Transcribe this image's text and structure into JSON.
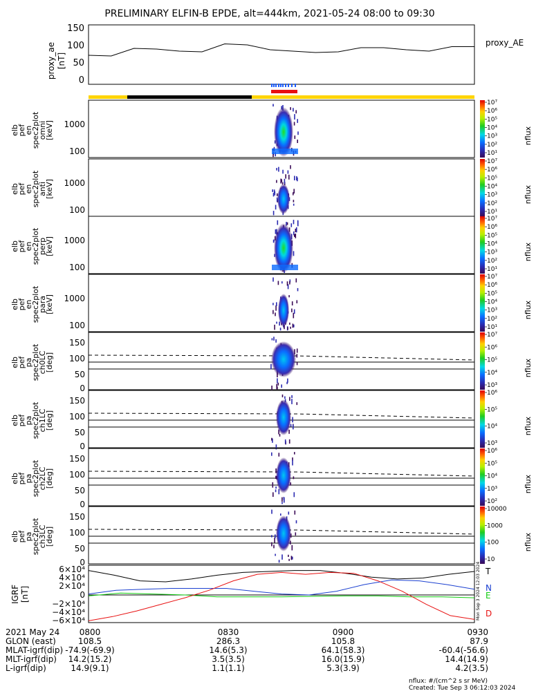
{
  "title": "PRELIMINARY ELFIN-B EPDE, alt=444km, 2021-05-24 08:00 to 09:30",
  "colors": {
    "pa_blue": "#1a5cff",
    "bar_yellow": "#ffd400",
    "bar_black": "#000000",
    "red": "#e81010",
    "green": "#11cc11"
  },
  "panels": {
    "proxy_ae": {
      "ylabel": [
        "proxy_ae",
        "[nT]"
      ],
      "yticks": [
        "150",
        "100",
        "50",
        "0"
      ],
      "legend": "proxy_AE"
    },
    "spec": [
      {
        "ylabel": [
          "elb",
          "pef",
          "en",
          "spec2plot",
          "omni",
          "[keV]"
        ],
        "yticks": [
          "1000",
          "100"
        ],
        "cbar_ticks": [
          "10⁷",
          "10⁶",
          "10⁵",
          "10⁴",
          "10³",
          "10²",
          "10¹"
        ],
        "cbar_label": "nflux"
      },
      {
        "ylabel": [
          "elb",
          "pef",
          "en",
          "spec2plot",
          "anti",
          "[keV]"
        ],
        "yticks": [
          "1000",
          "100"
        ],
        "cbar_ticks": [
          "10⁷",
          "10⁶",
          "10⁵",
          "10⁴",
          "10³",
          "10²",
          "10¹"
        ],
        "cbar_label": "nflux"
      },
      {
        "ylabel": [
          "elb",
          "pef",
          "en",
          "spec2plot",
          "perp",
          "[keV]"
        ],
        "yticks": [
          "1000",
          "100"
        ],
        "cbar_ticks": [
          "10⁷",
          "10⁶",
          "10⁵",
          "10⁴",
          "10³",
          "10²",
          "10¹"
        ],
        "cbar_label": "nflux"
      },
      {
        "ylabel": [
          "elb",
          "pef",
          "en",
          "spec2plot",
          "para",
          "[keV]"
        ],
        "yticks": [
          "1000",
          "100"
        ],
        "cbar_ticks": [
          "10⁷",
          "10⁶",
          "10⁵",
          "10⁴",
          "10³",
          "10²",
          "10¹"
        ],
        "cbar_label": "nflux"
      }
    ],
    "pa": [
      {
        "ylabel": [
          "elb",
          "pef",
          "pa",
          "spec2plot",
          "ch0LC",
          "[deg]"
        ],
        "yticks": [
          "150",
          "100",
          "50",
          "0"
        ],
        "cbar_ticks": [
          "10⁷",
          "10⁶",
          "10⁵",
          "10⁴",
          "10³"
        ],
        "cbar_label": "nflux"
      },
      {
        "ylabel": [
          "elb",
          "pef",
          "pa",
          "spec2plot",
          "ch1LC",
          "[deg]"
        ],
        "yticks": [
          "150",
          "100",
          "50",
          "0"
        ],
        "cbar_ticks": [
          "10⁶",
          "10⁵",
          "10⁴",
          "10³"
        ],
        "cbar_label": "nflux"
      },
      {
        "ylabel": [
          "elb",
          "pef",
          "pa",
          "spec2plot",
          "ch2LC",
          "[deg]"
        ],
        "yticks": [
          "150",
          "100",
          "50",
          "0"
        ],
        "cbar_ticks": [
          "10⁶",
          "10⁵",
          "10⁴",
          "10³",
          "10²"
        ],
        "cbar_label": "nflux"
      },
      {
        "ylabel": [
          "elb",
          "pef",
          "pa",
          "spec2plot",
          "ch3LC",
          "[deg]"
        ],
        "yticks": [
          "150",
          "100",
          "50",
          "0"
        ],
        "cbar_ticks": [
          "10000",
          "1000",
          "100",
          "10"
        ],
        "cbar_label": "nflux"
      }
    ],
    "igrf": {
      "ylabel": [
        "IGRF",
        "[nT]"
      ],
      "yticks": [
        "6×10⁴",
        "4×10⁴",
        "2×10⁴",
        "0",
        "−2×10⁴",
        "−4×10⁴",
        "−6×10⁴"
      ],
      "legend": [
        "T",
        "N",
        "E",
        "D"
      ],
      "side_label": "Mon Sep  3 2024 12:03 2024"
    }
  },
  "chart_data": {
    "type": "line",
    "x": [
      "0800",
      "0830",
      "0900",
      "0930"
    ],
    "series": [
      {
        "name": "proxy_AE",
        "values_nT": [
          70,
          68,
          90,
          88,
          82,
          80,
          103,
          100,
          86,
          82,
          78,
          80,
          92,
          92,
          86,
          82,
          95,
          95
        ]
      },
      {
        "name": "T",
        "values_nT_k": [
          52,
          42,
          30,
          28,
          34,
          42,
          48,
          50,
          52,
          52,
          46,
          38,
          34,
          36,
          44,
          50
        ]
      },
      {
        "name": "N",
        "values_nT_k": [
          2,
          10,
          12,
          14,
          14,
          14,
          8,
          2,
          0,
          8,
          22,
          32,
          30,
          22,
          12
        ]
      },
      {
        "name": "E",
        "values_nT_k": [
          -2,
          4,
          2,
          0,
          -4,
          -4,
          -4,
          -3,
          -2,
          -2,
          -4,
          -4,
          -6
        ]
      },
      {
        "name": "D",
        "values_nT_k": [
          -55,
          -46,
          -34,
          -20,
          -6,
          10,
          30,
          44,
          48,
          44,
          48,
          46,
          30,
          8,
          -20,
          -44,
          -52
        ]
      }
    ]
  },
  "footer": {
    "rows": [
      [
        "2021 May 24",
        "0800",
        "0830",
        "0900",
        "0930"
      ],
      [
        "GLON (east)",
        "108.5",
        "286.3",
        "105.8",
        "87.9"
      ],
      [
        "MLAT-igrf(dip)",
        "-74.9(-69.9)",
        "14.6(5.3)",
        "64.1(58.3)",
        "-60.4(-56.6)"
      ],
      [
        "MLT-igrf(dip)",
        "14.2(15.2)",
        "3.5(3.5)",
        "16.0(15.9)",
        "14.4(14.9)"
      ],
      [
        "L-igrf(dip)",
        "14.9(9.1)",
        "1.1(1.1)",
        "5.3(3.9)",
        "4.2(3.5)"
      ]
    ],
    "units_note": "nflux: #/(cm^2 s sr MeV)",
    "created": "Created: Tue Sep  3 06:12:03 2024"
  }
}
